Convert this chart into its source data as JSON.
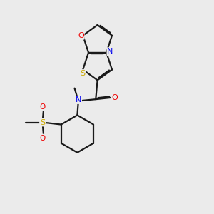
{
  "bg_color": "#ebebeb",
  "bond_color": "#1a1a1a",
  "colors": {
    "N": "#0000ee",
    "O": "#ee0000",
    "S_thiazole": "#ccaa00",
    "S_sulfonyl": "#ccaa00"
  },
  "lw": 1.6,
  "dbo": 0.055
}
